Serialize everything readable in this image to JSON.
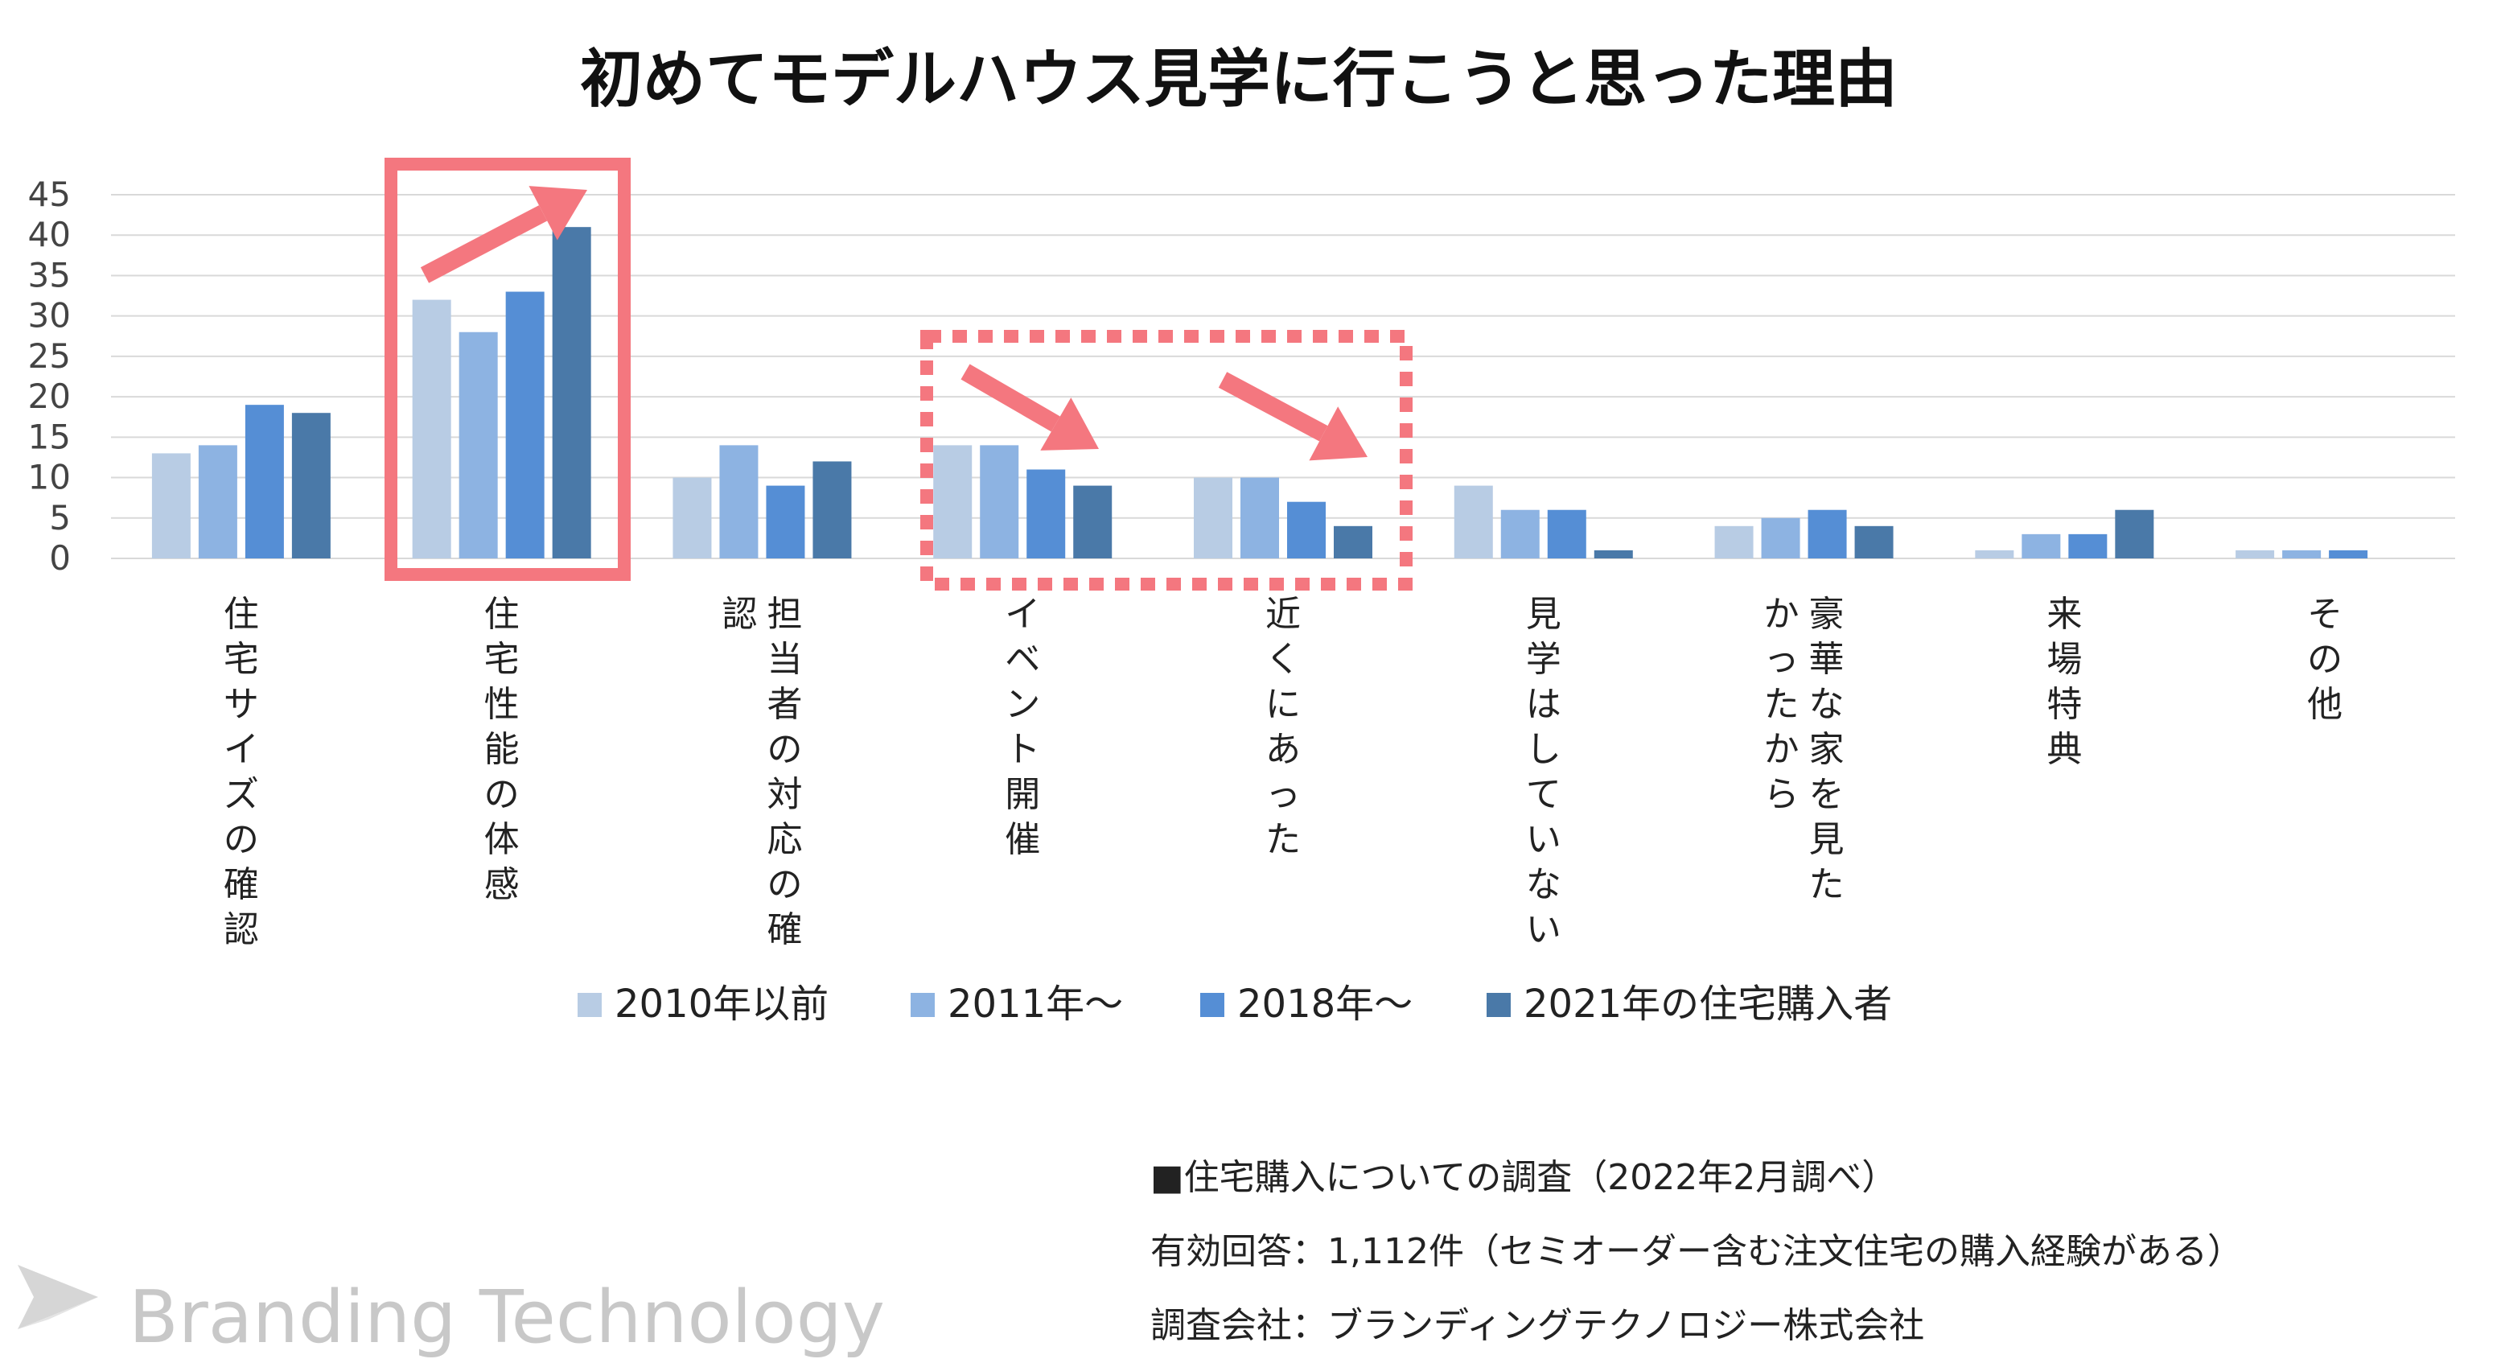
{
  "chart_data": {
    "type": "bar",
    "title": "初めてモデルハウス見学に行こうと思った理由",
    "categories": [
      [
        "住宅サイズの確認"
      ],
      [
        "住宅性能の体感"
      ],
      [
        "担当者の対応の確",
        "認"
      ],
      [
        "イベント開催"
      ],
      [
        "近くにあった"
      ],
      [
        "見学はしていない"
      ],
      [
        "豪華な家を見た",
        "かったから"
      ],
      [
        "来場特典"
      ],
      [
        "その他"
      ]
    ],
    "series": [
      {
        "name": "2010年以前",
        "color": "#b8cce4",
        "values": [
          13,
          32,
          10,
          14,
          10,
          9,
          4,
          1,
          1
        ]
      },
      {
        "name": "2011年～",
        "color": "#8db3e2",
        "values": [
          14,
          28,
          14,
          14,
          10,
          6,
          5,
          3,
          1
        ]
      },
      {
        "name": "2018年～",
        "color": "#558ed5",
        "values": [
          19,
          33,
          9,
          11,
          7,
          6,
          6,
          3,
          1
        ]
      },
      {
        "name": "2021年の住宅購入者",
        "color": "#4a79a8",
        "values": [
          18,
          41,
          12,
          9,
          4,
          1,
          4,
          6,
          0
        ]
      }
    ],
    "ylim": [
      0,
      45
    ],
    "yticks": [
      0,
      5,
      10,
      15,
      20,
      25,
      30,
      35,
      40,
      45
    ],
    "grid": true,
    "legend_position": "bottom",
    "highlight_color": "#f4777f"
  },
  "footer": {
    "line1": "■住宅購入についての調査（2022年2月調べ）",
    "line2": "有効回答：1,112件（セミオーダー含む注文住宅の購入経験がある）",
    "line3": "調査会社：ブランディングテクノロジー株式会社"
  },
  "brand": {
    "name": "Branding Technology",
    "icon": "paper-plane-logo-icon"
  }
}
